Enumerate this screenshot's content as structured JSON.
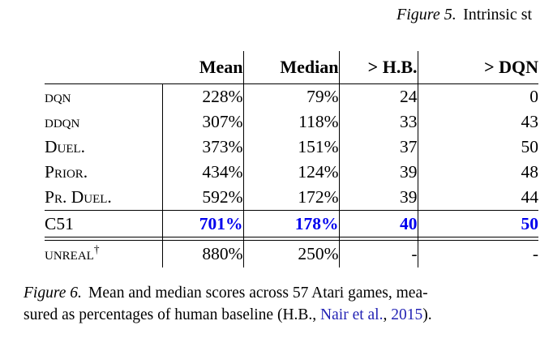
{
  "top_caption": {
    "label": "Figure 5.",
    "text": "Intrinsic st"
  },
  "table": {
    "col_headers": [
      "Mean",
      "Median",
      "> H.B.",
      "> DQN"
    ],
    "rows": [
      {
        "label": "DQN",
        "sc_text": "dqn",
        "mean": "228%",
        "median": "79%",
        "gt_hb": "24",
        "gt_dqn": "0"
      },
      {
        "label": "DDQN",
        "sc_text": "ddqn",
        "mean": "307%",
        "median": "118%",
        "gt_hb": "33",
        "gt_dqn": "43"
      },
      {
        "label": "DUEL.",
        "sc_text": "Duel.",
        "mean": "373%",
        "median": "151%",
        "gt_hb": "37",
        "gt_dqn": "50"
      },
      {
        "label": "PRIOR.",
        "sc_text": "Prior.",
        "mean": "434%",
        "median": "124%",
        "gt_hb": "39",
        "gt_dqn": "48"
      },
      {
        "label": "PR. DUEL.",
        "sc_text": "Pr. Duel.",
        "mean": "592%",
        "median": "172%",
        "gt_hb": "39",
        "gt_dqn": "44"
      }
    ],
    "highlight_row": {
      "label": "C51",
      "sc_text": "C51",
      "mean": "701%",
      "median": "178%",
      "gt_hb": "40",
      "gt_dqn": "50"
    },
    "footnote_row": {
      "label": "UNREAL",
      "sc_text": "unreal",
      "sup": "†",
      "mean": "880%",
      "median": "250%",
      "gt_hb": "-",
      "gt_dqn": "-"
    }
  },
  "bottom_caption": {
    "label": "Figure 6.",
    "line1_rest": "Mean and median scores across 57 Atari games, mea-",
    "line2_pre": "sured as percentages of human baseline (H.B., ",
    "link1": "Nair et al.",
    "separator": ", ",
    "link2": "2015",
    "line2_post": ")."
  },
  "colors": {
    "highlight_blue": "#0000ee",
    "link_blue": "#2323b4",
    "text": "#000000",
    "rule": "#000000",
    "background": "#ffffff"
  }
}
